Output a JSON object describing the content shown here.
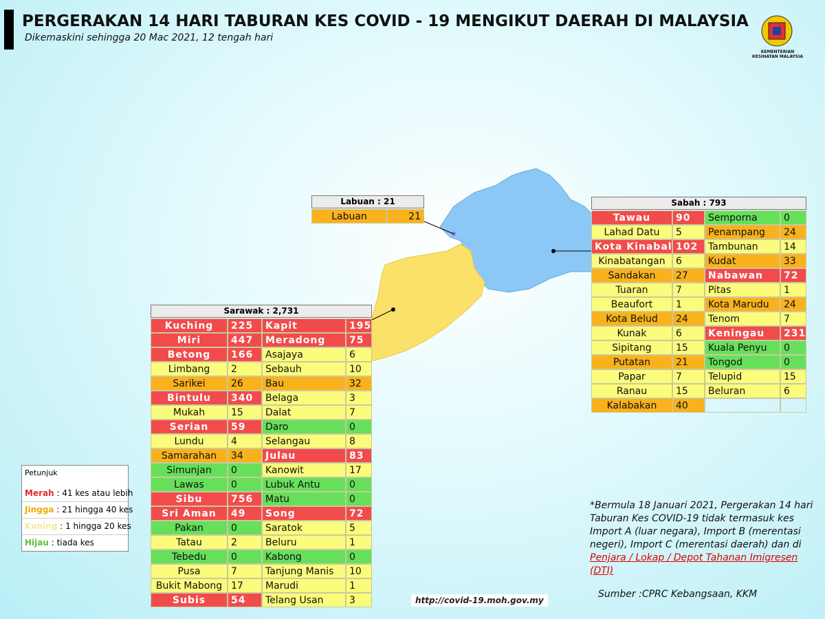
{
  "header": {
    "title": "PERGERAKAN 14 HARI TABURAN KES COVID - 19 MENGIKUT DAERAH DI MALAYSIA",
    "subtitle": "Dikemaskini sehingga 20 Mac 2021, 12 tengah hari",
    "logo_text": "KEMENTERIAN KESIHATAN MALAYSIA"
  },
  "labuan": {
    "title": "Labuan : 21",
    "rows": [
      [
        {
          "name": "Labuan",
          "cases": 21,
          "color": "#f9b21b"
        }
      ]
    ]
  },
  "sabah": {
    "title": "Sabah : 793",
    "rows": [
      [
        {
          "name": "Tawau",
          "cases": 90,
          "color": "#f24b4b"
        },
        {
          "name": "Semporna",
          "cases": 0,
          "color": "#66e05a"
        }
      ],
      [
        {
          "name": "Lahad Datu",
          "cases": 5,
          "color": "#fbfb7c"
        },
        {
          "name": "Penampang",
          "cases": 24,
          "color": "#f9b21b"
        }
      ],
      [
        {
          "name": "Kota Kinabalu",
          "cases": 102,
          "color": "#f24b4b"
        },
        {
          "name": "Tambunan",
          "cases": 14,
          "color": "#fbfb7c"
        }
      ],
      [
        {
          "name": "Kinabatangan",
          "cases": 6,
          "color": "#fbfb7c"
        },
        {
          "name": "Kudat",
          "cases": 33,
          "color": "#f9b21b"
        }
      ],
      [
        {
          "name": "Sandakan",
          "cases": 27,
          "color": "#f9b21b"
        },
        {
          "name": "Nabawan",
          "cases": 72,
          "color": "#f24b4b"
        }
      ],
      [
        {
          "name": "Tuaran",
          "cases": 7,
          "color": "#fbfb7c"
        },
        {
          "name": "Pitas",
          "cases": 1,
          "color": "#fbfb7c"
        }
      ],
      [
        {
          "name": "Beaufort",
          "cases": 1,
          "color": "#fbfb7c"
        },
        {
          "name": "Kota Marudu",
          "cases": 24,
          "color": "#f9b21b"
        }
      ],
      [
        {
          "name": "Kota Belud",
          "cases": 24,
          "color": "#f9b21b"
        },
        {
          "name": "Tenom",
          "cases": 7,
          "color": "#fbfb7c"
        }
      ],
      [
        {
          "name": "Kunak",
          "cases": 6,
          "color": "#fbfb7c"
        },
        {
          "name": "Keningau",
          "cases": 231,
          "color": "#f24b4b"
        }
      ],
      [
        {
          "name": "Sipitang",
          "cases": 15,
          "color": "#fbfb7c"
        },
        {
          "name": "Kuala Penyu",
          "cases": 0,
          "color": "#66e05a"
        }
      ],
      [
        {
          "name": "Putatan",
          "cases": 21,
          "color": "#f9b21b"
        },
        {
          "name": "Tongod",
          "cases": 0,
          "color": "#66e05a"
        }
      ],
      [
        {
          "name": "Papar",
          "cases": 7,
          "color": "#fbfb7c"
        },
        {
          "name": "Telupid",
          "cases": 15,
          "color": "#fbfb7c"
        }
      ],
      [
        {
          "name": "Ranau",
          "cases": 15,
          "color": "#fbfb7c"
        },
        {
          "name": "Beluran",
          "cases": 6,
          "color": "#fbfb7c"
        }
      ],
      [
        {
          "name": "Kalabakan",
          "cases": 40,
          "color": "#f9b21b"
        }
      ]
    ]
  },
  "sarawak": {
    "title": "Sarawak : 2,731",
    "rows": [
      [
        {
          "name": "Kuching",
          "cases": 225,
          "color": "#f24b4b"
        },
        {
          "name": "Kapit",
          "cases": 195,
          "color": "#f24b4b"
        }
      ],
      [
        {
          "name": "Miri",
          "cases": 447,
          "color": "#f24b4b"
        },
        {
          "name": "Meradong",
          "cases": 75,
          "color": "#f24b4b"
        }
      ],
      [
        {
          "name": "Betong",
          "cases": 166,
          "color": "#f24b4b"
        },
        {
          "name": "Asajaya",
          "cases": 6,
          "color": "#fbfb7c"
        }
      ],
      [
        {
          "name": "Limbang",
          "cases": 2,
          "color": "#fbfb7c"
        },
        {
          "name": "Sebauh",
          "cases": 10,
          "color": "#fbfb7c"
        }
      ],
      [
        {
          "name": "Sarikei",
          "cases": 26,
          "color": "#f9b21b"
        },
        {
          "name": "Bau",
          "cases": 32,
          "color": "#f9b21b"
        }
      ],
      [
        {
          "name": "Bintulu",
          "cases": 340,
          "color": "#f24b4b"
        },
        {
          "name": "Belaga",
          "cases": 3,
          "color": "#fbfb7c"
        }
      ],
      [
        {
          "name": "Mukah",
          "cases": 15,
          "color": "#fbfb7c"
        },
        {
          "name": "Dalat",
          "cases": 7,
          "color": "#fbfb7c"
        }
      ],
      [
        {
          "name": "Serian",
          "cases": 59,
          "color": "#f24b4b"
        },
        {
          "name": "Daro",
          "cases": 0,
          "color": "#66e05a"
        }
      ],
      [
        {
          "name": "Lundu",
          "cases": 4,
          "color": "#fbfb7c"
        },
        {
          "name": "Selangau",
          "cases": 8,
          "color": "#fbfb7c"
        }
      ],
      [
        {
          "name": "Samarahan",
          "cases": 34,
          "color": "#f9b21b"
        },
        {
          "name": "Julau",
          "cases": 83,
          "color": "#f24b4b"
        }
      ],
      [
        {
          "name": "Simunjan",
          "cases": 0,
          "color": "#66e05a"
        },
        {
          "name": "Kanowit",
          "cases": 17,
          "color": "#fbfb7c"
        }
      ],
      [
        {
          "name": "Lawas",
          "cases": 0,
          "color": "#66e05a"
        },
        {
          "name": "Lubuk Antu",
          "cases": 0,
          "color": "#66e05a"
        }
      ],
      [
        {
          "name": "Sibu",
          "cases": 756,
          "color": "#f24b4b"
        },
        {
          "name": "Matu",
          "cases": 0,
          "color": "#66e05a"
        }
      ],
      [
        {
          "name": "Sri Aman",
          "cases": 49,
          "color": "#f24b4b"
        },
        {
          "name": "Song",
          "cases": 72,
          "color": "#f24b4b"
        }
      ],
      [
        {
          "name": "Pakan",
          "cases": 0,
          "color": "#66e05a"
        },
        {
          "name": "Saratok",
          "cases": 5,
          "color": "#fbfb7c"
        }
      ],
      [
        {
          "name": "Tatau",
          "cases": 2,
          "color": "#fbfb7c"
        },
        {
          "name": "Beluru",
          "cases": 1,
          "color": "#fbfb7c"
        }
      ],
      [
        {
          "name": "Tebedu",
          "cases": 0,
          "color": "#66e05a"
        },
        {
          "name": "Kabong",
          "cases": 0,
          "color": "#66e05a"
        }
      ],
      [
        {
          "name": "Pusa",
          "cases": 7,
          "color": "#fbfb7c"
        },
        {
          "name": "Tanjung Manis",
          "cases": 10,
          "color": "#fbfb7c"
        }
      ],
      [
        {
          "name": "Bukit Mabong",
          "cases": 17,
          "color": "#fbfb7c"
        },
        {
          "name": "Marudi",
          "cases": 1,
          "color": "#fbfb7c"
        }
      ],
      [
        {
          "name": "Subis",
          "cases": 54,
          "color": "#f24b4b"
        },
        {
          "name": "Telang Usan",
          "cases": 3,
          "color": "#fbfb7c"
        }
      ]
    ]
  },
  "legend": {
    "title": "Petunjuk",
    "items": [
      {
        "name": "Merah",
        "text": " : 41 kes atau lebih",
        "color": "#e8272a"
      },
      {
        "name": "Jingga",
        "text": " : 21 hingga 40 kes",
        "color": "#f2a900"
      },
      {
        "name": "Kuning",
        "text": " : 1 hingga 20 kes",
        "color": "#f5e79a"
      },
      {
        "name": "Hijau",
        "text": " : tiada kes",
        "color": "#5cc13a"
      }
    ]
  },
  "note": {
    "text": "*Bermula 18 Januari 2021, Pergerakan 14 hari Taburan Kes COVID-19 tidak termasuk kes Import A (luar negara), Import B (merentasi negeri), Import C (merentasi daerah) dan di",
    "link": "Penjara / Lokap / Depot Tahanan Imigresen (DTI)"
  },
  "source": "Sumber :CPRC Kebangsaan,  KKM",
  "url": "http://covid-19.moh.gov.my"
}
